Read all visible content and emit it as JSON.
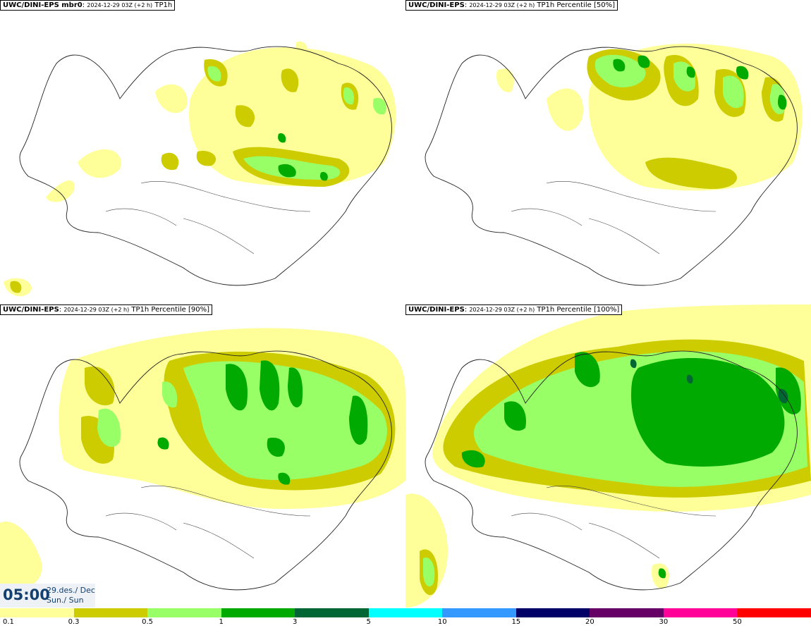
{
  "panels": [
    {
      "model": "UWC/DINI-EPS mbr0",
      "date": "2024-12-29 03Z (+2 h)",
      "field": "TP1h"
    },
    {
      "model": "UWC/DINI-EPS",
      "date": "2024-12-29 03Z (+2 h)",
      "field": "TP1h Percentile [50%]"
    },
    {
      "model": "UWC/DINI-EPS",
      "date": "2024-12-29 03Z (+2 h)",
      "field": "TP1h Percentile [90%]"
    },
    {
      "model": "UWC/DINI-EPS",
      "date": "2024-12-29 03Z (+2 h)",
      "field": "TP1h Percentile [100%]"
    }
  ],
  "timebox": {
    "time": "05:00",
    "date": "29.des./ Dec",
    "day": "Sun./ Sun"
  },
  "legend": {
    "ticks": [
      "0.1",
      "0.3",
      "0.5",
      "1",
      "3",
      "5",
      "10",
      "15",
      "20",
      "30",
      "50"
    ],
    "colors": [
      "#ffff99",
      "#cccc00",
      "#99ff66",
      "#00aa00",
      "#006633",
      "#00ffff",
      "#3399ff",
      "#000066",
      "#660066",
      "#ff0099",
      "#ff0000"
    ]
  },
  "palette": {
    "light": "#ffff99",
    "olive": "#cccc00",
    "lightgreen": "#99ff66",
    "green": "#00aa00",
    "darkgreen": "#006633"
  }
}
